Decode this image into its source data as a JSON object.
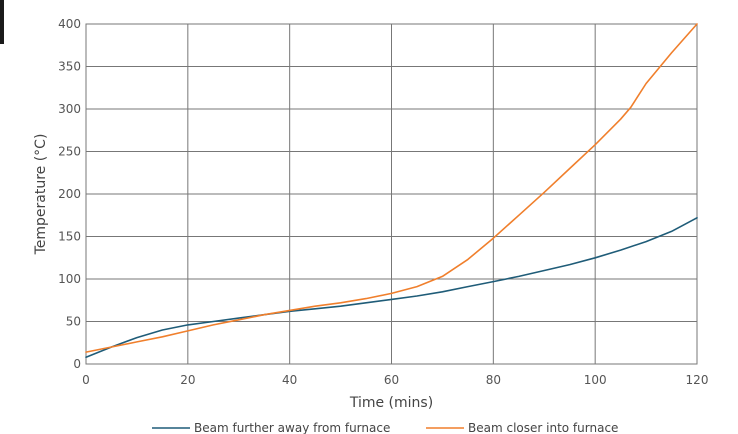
{
  "chart_data": {
    "type": "line",
    "title": "",
    "xlabel": "Time (mins)",
    "ylabel": "Temperature (°C)",
    "xlim": [
      0,
      120
    ],
    "ylim": [
      0,
      400
    ],
    "x_ticks": [
      "0",
      "20",
      "40",
      "60",
      "80",
      "100",
      "120"
    ],
    "y_ticks": [
      "0",
      "50",
      "100",
      "150",
      "200",
      "250",
      "300",
      "350",
      "400"
    ],
    "grid": true,
    "legend_position": "bottom-center",
    "series": [
      {
        "name": "Beam further away from furnace",
        "color": "#1f5c78",
        "x": [
          0,
          5,
          10,
          15,
          20,
          25,
          30,
          35,
          40,
          45,
          50,
          55,
          60,
          65,
          70,
          75,
          80,
          85,
          90,
          95,
          100,
          105,
          110,
          115,
          120
        ],
        "y": [
          8,
          20,
          31,
          40,
          46,
          50,
          54,
          58,
          62,
          65,
          68,
          72,
          76,
          80,
          85,
          91,
          97,
          103,
          110,
          117,
          125,
          134,
          144,
          156,
          172
        ]
      },
      {
        "name": "Beam closer into furnace",
        "color": "#f07f2c",
        "x": [
          0,
          5,
          10,
          15,
          20,
          25,
          30,
          35,
          40,
          45,
          50,
          55,
          60,
          65,
          70,
          75,
          80,
          85,
          90,
          95,
          100,
          105,
          107,
          110,
          115,
          120
        ],
        "y": [
          14,
          20,
          26,
          32,
          39,
          46,
          52,
          58,
          63,
          68,
          72,
          77,
          83,
          91,
          103,
          123,
          148,
          175,
          202,
          230,
          258,
          288,
          302,
          330,
          366,
          400
        ]
      }
    ]
  }
}
